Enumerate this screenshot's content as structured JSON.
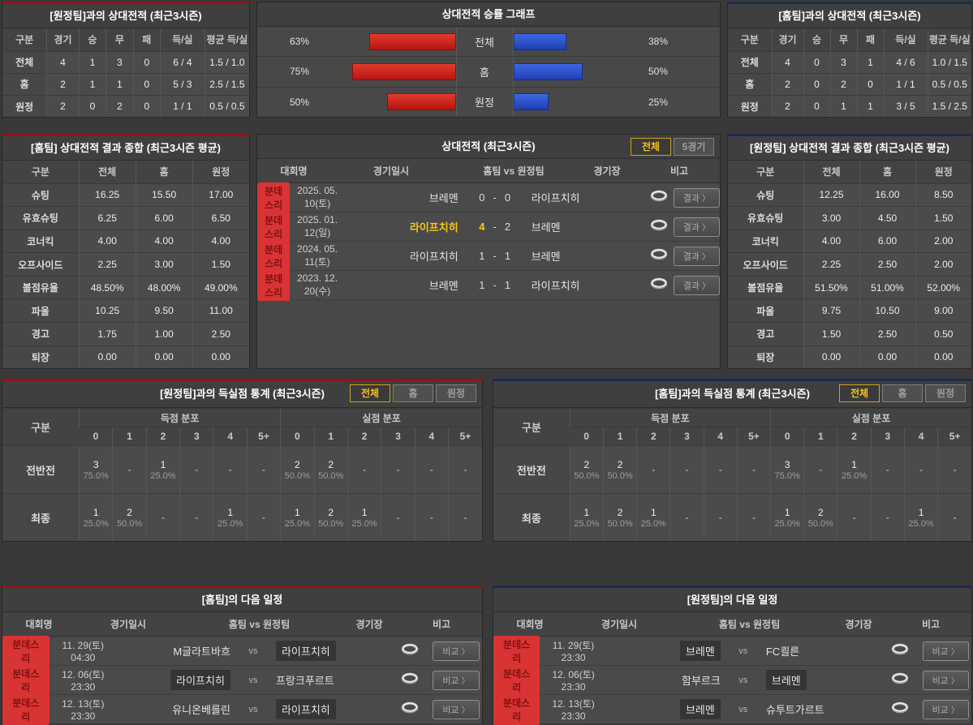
{
  "colors": {
    "accent_red": "#8e1519",
    "accent_blue": "#1e2a52",
    "bar_red": "#c9211a",
    "bar_blue": "#2f55c8",
    "highlight_yellow": "#f3c11d",
    "badge_red": "#d83434"
  },
  "chevron": "〉",
  "vs_label": "vs",
  "panels": {
    "away_h2h": {
      "title": "[원정팀]과의 상대전적 (최근3시즌)",
      "headers": [
        "구분",
        "경기",
        "승",
        "무",
        "패",
        "득/실",
        "평균 득/실"
      ],
      "rows": [
        [
          "전체",
          "4",
          "1",
          "3",
          "0",
          "6 / 4",
          "1.5 / 1.0"
        ],
        [
          "홈",
          "2",
          "1",
          "1",
          "0",
          "5 / 3",
          "2.5 / 1.5"
        ],
        [
          "원정",
          "2",
          "0",
          "2",
          "0",
          "1 / 1",
          "0.5 / 0.5"
        ]
      ]
    },
    "winrate": {
      "title": "상대전적 승률 그래프",
      "rows": [
        {
          "label": "전체",
          "left_pct": 63,
          "right_pct": 38
        },
        {
          "label": "홈",
          "left_pct": 75,
          "right_pct": 50
        },
        {
          "label": "원정",
          "left_pct": 50,
          "right_pct": 25
        }
      ]
    },
    "home_h2h": {
      "title": "[홈팀]과의 상대전적 (최근3시즌)",
      "headers": [
        "구분",
        "경기",
        "승",
        "무",
        "패",
        "득/실",
        "평균 득/실"
      ],
      "rows": [
        [
          "전체",
          "4",
          "0",
          "3",
          "1",
          "4 / 6",
          "1.0 / 1.5"
        ],
        [
          "홈",
          "2",
          "0",
          "2",
          "0",
          "1 / 1",
          "0.5 / 0.5"
        ],
        [
          "원정",
          "2",
          "0",
          "1",
          "1",
          "3 / 5",
          "1.5 / 2.5"
        ]
      ]
    },
    "home_summary": {
      "title": "[홈팀] 상대전적 결과 종합 (최근3시즌 평균)",
      "headers": [
        "구분",
        "전체",
        "홈",
        "원정"
      ],
      "rows": [
        [
          "슈팅",
          "16.25",
          "15.50",
          "17.00"
        ],
        [
          "유효슈팅",
          "6.25",
          "6.00",
          "6.50"
        ],
        [
          "코너킥",
          "4.00",
          "4.00",
          "4.00"
        ],
        [
          "오프사이드",
          "2.25",
          "3.00",
          "1.50"
        ],
        [
          "볼점유율",
          "48.50%",
          "48.00%",
          "49.00%"
        ],
        [
          "파울",
          "10.25",
          "9.50",
          "11.00"
        ],
        [
          "경고",
          "1.75",
          "1.00",
          "2.50"
        ],
        [
          "퇴장",
          "0.00",
          "0.00",
          "0.00"
        ]
      ]
    },
    "matches": {
      "title": "상대전적 (최근3시즌)",
      "tabs": [
        {
          "key": "all",
          "label": "전체",
          "active": true
        },
        {
          "key": "recent5",
          "label": "5경기",
          "active": false
        }
      ],
      "headers": [
        "대회명",
        "경기일시",
        "홈팀  vs  원정팀",
        "경기장",
        "비고"
      ],
      "button_label": "결과",
      "rows": [
        {
          "league": "분데스리",
          "date": "2025. 05. 10(토)",
          "home": "브레멘",
          "home_score": "0",
          "away_score": "0",
          "away": "라이프치히",
          "winner": ""
        },
        {
          "league": "분데스리",
          "date": "2025. 01. 12(일)",
          "home": "라이프치히",
          "home_score": "4",
          "away_score": "2",
          "away": "브레멘",
          "winner": "home"
        },
        {
          "league": "분데스리",
          "date": "2024. 05. 11(토)",
          "home": "라이프치히",
          "home_score": "1",
          "away_score": "1",
          "away": "브레멘",
          "winner": ""
        },
        {
          "league": "분데스리",
          "date": "2023. 12. 20(수)",
          "home": "브레멘",
          "home_score": "1",
          "away_score": "1",
          "away": "라이프치히",
          "winner": ""
        }
      ]
    },
    "away_summary": {
      "title": "[원정팀] 상대전적 결과 종합 (최근3시즌 평균)",
      "headers": [
        "구분",
        "전체",
        "홈",
        "원정"
      ],
      "rows": [
        [
          "슈팅",
          "12.25",
          "16.00",
          "8.50"
        ],
        [
          "유효슈팅",
          "3.00",
          "4.50",
          "1.50"
        ],
        [
          "코너킥",
          "4.00",
          "6.00",
          "2.00"
        ],
        [
          "오프사이드",
          "2.25",
          "2.50",
          "2.00"
        ],
        [
          "볼점유율",
          "51.50%",
          "51.00%",
          "52.00%"
        ],
        [
          "파울",
          "9.75",
          "10.50",
          "9.00"
        ],
        [
          "경고",
          "1.50",
          "2.50",
          "0.50"
        ],
        [
          "퇴장",
          "0.00",
          "0.00",
          "0.00"
        ]
      ]
    },
    "away_goal_stats": {
      "title": "[원정팀]과의 득실점 통계 (최근3시즌)",
      "tabs": [
        {
          "key": "all",
          "label": "전체",
          "active": true
        },
        {
          "key": "home",
          "label": "홈",
          "active": false
        },
        {
          "key": "away",
          "label": "원정",
          "active": false
        }
      ],
      "corner": "구분",
      "groups": [
        "득점 분포",
        "실점 분포"
      ],
      "cols": [
        "0",
        "1",
        "2",
        "3",
        "4",
        "5+"
      ],
      "rows": [
        {
          "label": "전반전",
          "scored": [
            [
              "3",
              "75.0%"
            ],
            null,
            [
              "1",
              "25.0%"
            ],
            null,
            null,
            null
          ],
          "conceded": [
            [
              "2",
              "50.0%"
            ],
            [
              "2",
              "50.0%"
            ],
            null,
            null,
            null,
            null
          ]
        },
        {
          "label": "최종",
          "scored": [
            [
              "1",
              "25.0%"
            ],
            [
              "2",
              "50.0%"
            ],
            null,
            null,
            [
              "1",
              "25.0%"
            ],
            null
          ],
          "conceded": [
            [
              "1",
              "25.0%"
            ],
            [
              "2",
              "50.0%"
            ],
            [
              "1",
              "25.0%"
            ],
            null,
            null,
            null
          ]
        }
      ]
    },
    "home_goal_stats": {
      "title": "[홈팀]과의 득실점 통계 (최근3시즌)",
      "tabs": [
        {
          "key": "all",
          "label": "전체",
          "active": true
        },
        {
          "key": "home",
          "label": "홈",
          "active": false
        },
        {
          "key": "away",
          "label": "원정",
          "active": false
        }
      ],
      "corner": "구분",
      "groups": [
        "득점 분포",
        "실점 분포"
      ],
      "cols": [
        "0",
        "1",
        "2",
        "3",
        "4",
        "5+"
      ],
      "rows": [
        {
          "label": "전반전",
          "scored": [
            [
              "2",
              "50.0%"
            ],
            [
              "2",
              "50.0%"
            ],
            null,
            null,
            null,
            null
          ],
          "conceded": [
            [
              "3",
              "75.0%"
            ],
            null,
            [
              "1",
              "25.0%"
            ],
            null,
            null,
            null
          ]
        },
        {
          "label": "최종",
          "scored": [
            [
              "1",
              "25.0%"
            ],
            [
              "2",
              "50.0%"
            ],
            [
              "1",
              "25.0%"
            ],
            null,
            null,
            null
          ],
          "conceded": [
            [
              "1",
              "25.0%"
            ],
            [
              "2",
              "50.0%"
            ],
            null,
            null,
            [
              "1",
              "25.0%"
            ],
            null
          ]
        }
      ]
    },
    "home_schedule": {
      "title": "[홈팀]의 다음 일정",
      "headers": [
        "대회명",
        "경기일시",
        "홈팀  vs  원정팀",
        "경기장",
        "비고"
      ],
      "button_label": "비교",
      "rows": [
        {
          "league": "분데스리",
          "date": "11. 29(토) 04:30",
          "home": "M글라트바흐",
          "away": "라이프치히",
          "highlight": "away"
        },
        {
          "league": "분데스리",
          "date": "12. 06(토) 23:30",
          "home": "라이프치히",
          "away": "프랑크푸르트",
          "highlight": "home"
        },
        {
          "league": "분데스리",
          "date": "12. 13(토) 23:30",
          "home": "유니온베를린",
          "away": "라이프치히",
          "highlight": "away"
        }
      ]
    },
    "away_schedule": {
      "title": "[원정팀]의 다음 일정",
      "headers": [
        "대회명",
        "경기일시",
        "홈팀  vs  원정팀",
        "경기장",
        "비고"
      ],
      "button_label": "비교",
      "rows": [
        {
          "league": "분데스리",
          "date": "11. 29(토) 23:30",
          "home": "브레멘",
          "away": "FC쾰른",
          "highlight": "home"
        },
        {
          "league": "분데스리",
          "date": "12. 06(토) 23:30",
          "home": "함부르크",
          "away": "브레멘",
          "highlight": "away"
        },
        {
          "league": "분데스리",
          "date": "12. 13(토) 23:30",
          "home": "브레멘",
          "away": "슈투트가르트",
          "highlight": "home"
        }
      ]
    }
  }
}
